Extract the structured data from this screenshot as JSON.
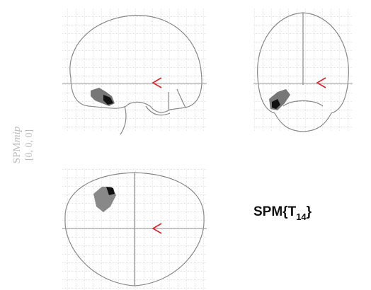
{
  "side_label": {
    "name": "SPM",
    "italic": "mip",
    "coords": "[0, 0, 0]"
  },
  "stat_label": {
    "prefix": "SPM{T",
    "subscript": "14",
    "suffix": "}"
  }
}
